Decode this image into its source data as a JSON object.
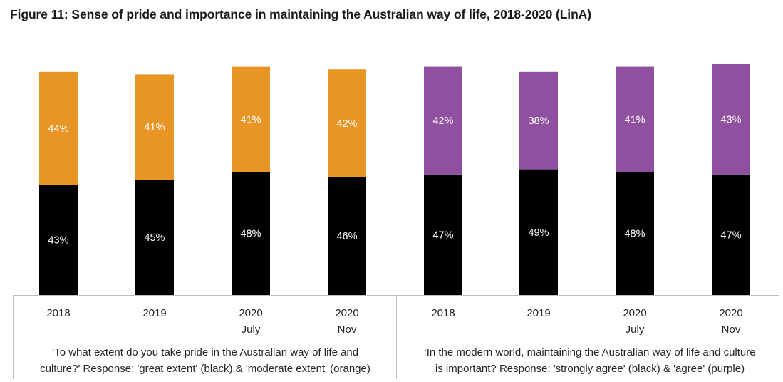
{
  "title": "Figure 11: Sense of pride and importance in maintaining the Australian way of life, 2018-2020 (LinA)",
  "colors": {
    "black": "#000000",
    "orange": "#e99526",
    "purple": "#9050a0",
    "axis": "#bfbfbf"
  },
  "chart_data": {
    "type": "bar",
    "stacked": true,
    "title": "Figure 11: Sense of pride and importance in maintaining the Australian way of life, 2018-2020 (LinA)",
    "ylim": [
      0,
      100
    ],
    "groups": [
      {
        "caption": "‘To what extent do you take pride in the Australian way of life and culture?' Response: 'great extent' (black) & 'moderate extent' (orange)",
        "categories": [
          [
            "2018"
          ],
          [
            "2019"
          ],
          [
            "2020",
            "July"
          ],
          [
            "2020",
            "Nov"
          ]
        ],
        "series": [
          {
            "name": "great extent",
            "color": "#000000",
            "values": [
              43,
              45,
              48,
              46
            ],
            "labels": [
              "43%",
              "45%",
              "48%",
              "46%"
            ]
          },
          {
            "name": "moderate extent",
            "color": "#e99526",
            "values": [
              44,
              41,
              41,
              42
            ],
            "labels": [
              "44%",
              "41%",
              "41%",
              "42%"
            ]
          }
        ]
      },
      {
        "caption": "‘In the modern world, maintaining the Australian way of life and culture is important? Response: 'strongly agree' (black) & 'agree' (purple)",
        "categories": [
          [
            "2018"
          ],
          [
            "2019"
          ],
          [
            "2020",
            "July"
          ],
          [
            "2020",
            "Nov"
          ]
        ],
        "series": [
          {
            "name": "strongly agree",
            "color": "#000000",
            "values": [
              47,
              49,
              48,
              47
            ],
            "labels": [
              "47%",
              "49%",
              "48%",
              "47%"
            ]
          },
          {
            "name": "agree",
            "color": "#9050a0",
            "values": [
              42,
              38,
              41,
              43
            ],
            "labels": [
              "42%",
              "38%",
              "41%",
              "43%"
            ]
          }
        ]
      }
    ]
  },
  "captions": {
    "left_line1": "‘To what extent do you take pride in the Australian way of life and",
    "left_line2": "culture?' Response: 'great extent' (black) & 'moderate extent' (orange)",
    "right_line1": "‘In the modern world, maintaining the Australian way of life and culture",
    "right_line2": "is important? Response: 'strongly agree' (black) & 'agree' (purple)"
  }
}
